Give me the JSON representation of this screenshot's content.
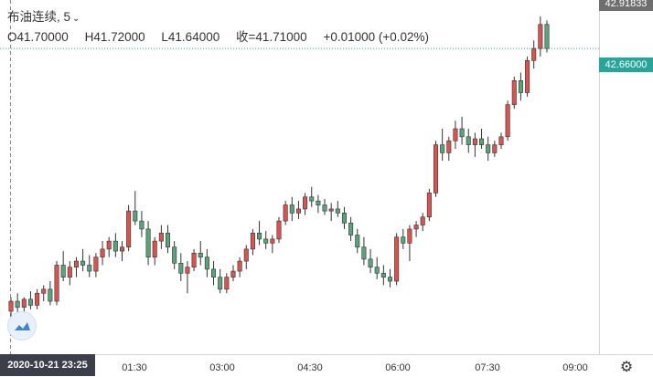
{
  "header": {
    "symbol": "布油连续",
    "interval": "5",
    "open": "O41.70000",
    "high": "H41.72000",
    "low": "L41.64000",
    "close": "收=41.71000",
    "change": "+0.01000 (+0.02%)"
  },
  "price_axis": {
    "top_label": "42.91833",
    "last_price_label": "42.66000"
  },
  "time_axis": {
    "crosshair_label": "2020-10-21  23:25",
    "ticks": [
      "01:30",
      "03:00",
      "04:30",
      "06:00",
      "07:30",
      "09:00"
    ]
  },
  "colors": {
    "up": "#d9534f",
    "down": "#5aa27c",
    "last_line": "#26a69a",
    "grid": "#eeeeee"
  },
  "icons": {
    "settings": "gear-icon",
    "logo": "tradingview-cloud-icon",
    "dropdown": "chevron-down-icon"
  },
  "chart_data": {
    "type": "candlestick",
    "interval_minutes": 5,
    "last_price": 42.66,
    "x_ticks": [
      "01:30",
      "03:00",
      "04:30",
      "06:00",
      "07:30",
      "09:00"
    ],
    "candles": [
      [
        41.35,
        41.42,
        41.3,
        41.4
      ],
      [
        41.4,
        41.44,
        41.34,
        41.37
      ],
      [
        41.37,
        41.42,
        41.33,
        41.41
      ],
      [
        41.41,
        41.45,
        41.36,
        41.38
      ],
      [
        41.38,
        41.46,
        41.36,
        41.44
      ],
      [
        41.44,
        41.48,
        41.4,
        41.46
      ],
      [
        41.46,
        41.5,
        41.38,
        41.4
      ],
      [
        41.4,
        41.6,
        41.38,
        41.58
      ],
      [
        41.58,
        41.65,
        41.5,
        41.52
      ],
      [
        41.52,
        41.6,
        41.48,
        41.57
      ],
      [
        41.57,
        41.62,
        41.52,
        41.6
      ],
      [
        41.6,
        41.66,
        41.55,
        41.58
      ],
      [
        41.58,
        41.63,
        41.52,
        41.55
      ],
      [
        41.55,
        41.64,
        41.52,
        41.62
      ],
      [
        41.62,
        41.7,
        41.58,
        41.66
      ],
      [
        41.66,
        41.72,
        41.62,
        41.7
      ],
      [
        41.7,
        41.74,
        41.62,
        41.65
      ],
      [
        41.65,
        41.7,
        41.6,
        41.67
      ],
      [
        41.67,
        41.88,
        41.65,
        41.85
      ],
      [
        41.85,
        41.95,
        41.78,
        41.8
      ],
      [
        41.8,
        41.85,
        41.72,
        41.76
      ],
      [
        41.76,
        41.8,
        41.58,
        41.62
      ],
      [
        41.62,
        41.72,
        41.58,
        41.7
      ],
      [
        41.7,
        41.78,
        41.66,
        41.74
      ],
      [
        41.74,
        41.78,
        41.64,
        41.67
      ],
      [
        41.67,
        41.7,
        41.56,
        41.59
      ],
      [
        41.59,
        41.64,
        41.5,
        41.54
      ],
      [
        41.54,
        41.6,
        41.44,
        41.57
      ],
      [
        41.57,
        41.66,
        41.55,
        41.64
      ],
      [
        41.64,
        41.7,
        41.58,
        41.62
      ],
      [
        41.62,
        41.66,
        41.52,
        41.56
      ],
      [
        41.56,
        41.6,
        41.48,
        41.52
      ],
      [
        41.52,
        41.56,
        41.44,
        41.46
      ],
      [
        41.46,
        41.54,
        41.44,
        41.52
      ],
      [
        41.52,
        41.58,
        41.5,
        41.55
      ],
      [
        41.55,
        41.62,
        41.52,
        41.6
      ],
      [
        41.6,
        41.68,
        41.56,
        41.66
      ],
      [
        41.66,
        41.76,
        41.63,
        41.74
      ],
      [
        41.74,
        41.8,
        41.68,
        41.71
      ],
      [
        41.71,
        41.75,
        41.66,
        41.69
      ],
      [
        41.69,
        41.73,
        41.64,
        41.71
      ],
      [
        41.71,
        41.82,
        41.69,
        41.8
      ],
      [
        41.8,
        41.9,
        41.78,
        41.88
      ],
      [
        41.88,
        41.92,
        41.8,
        41.84
      ],
      [
        41.84,
        41.9,
        41.81,
        41.86
      ],
      [
        41.86,
        41.94,
        41.83,
        41.92
      ],
      [
        41.92,
        41.97,
        41.87,
        41.9
      ],
      [
        41.9,
        41.93,
        41.84,
        41.88
      ],
      [
        41.88,
        41.91,
        41.83,
        41.85
      ],
      [
        41.85,
        41.89,
        41.8,
        41.86
      ],
      [
        41.86,
        41.9,
        41.82,
        41.84
      ],
      [
        41.84,
        41.87,
        41.76,
        41.79
      ],
      [
        41.79,
        41.82,
        41.7,
        41.73
      ],
      [
        41.73,
        41.76,
        41.64,
        41.67
      ],
      [
        41.67,
        41.72,
        41.58,
        41.61
      ],
      [
        41.61,
        41.66,
        41.54,
        41.57
      ],
      [
        41.57,
        41.62,
        41.51,
        41.54
      ],
      [
        41.54,
        41.58,
        41.48,
        41.52
      ],
      [
        41.52,
        41.56,
        41.47,
        41.5
      ],
      [
        41.5,
        41.74,
        41.48,
        41.72
      ],
      [
        41.72,
        41.76,
        41.66,
        41.69
      ],
      [
        41.69,
        41.78,
        41.6,
        41.76
      ],
      [
        41.76,
        41.8,
        41.72,
        41.78
      ],
      [
        41.78,
        41.84,
        41.75,
        41.82
      ],
      [
        41.82,
        41.96,
        41.8,
        41.94
      ],
      [
        41.94,
        42.2,
        41.92,
        42.18
      ],
      [
        42.18,
        42.26,
        42.1,
        42.14
      ],
      [
        42.14,
        42.22,
        42.1,
        42.2
      ],
      [
        42.2,
        42.3,
        42.16,
        42.26
      ],
      [
        42.26,
        42.32,
        42.18,
        42.22
      ],
      [
        42.22,
        42.26,
        42.14,
        42.18
      ],
      [
        42.18,
        42.24,
        42.12,
        42.21
      ],
      [
        42.21,
        42.26,
        42.16,
        42.18
      ],
      [
        42.18,
        42.22,
        42.1,
        42.14
      ],
      [
        42.14,
        42.2,
        42.12,
        42.18
      ],
      [
        42.18,
        42.24,
        42.16,
        42.22
      ],
      [
        42.22,
        42.4,
        42.2,
        42.38
      ],
      [
        42.38,
        42.52,
        42.36,
        42.5
      ],
      [
        42.5,
        42.54,
        42.4,
        42.44
      ],
      [
        42.44,
        42.62,
        42.42,
        42.6
      ],
      [
        42.6,
        42.7,
        42.56,
        42.66
      ],
      [
        42.66,
        42.82,
        42.62,
        42.78
      ],
      [
        42.78,
        42.8,
        42.64,
        42.66
      ]
    ]
  }
}
